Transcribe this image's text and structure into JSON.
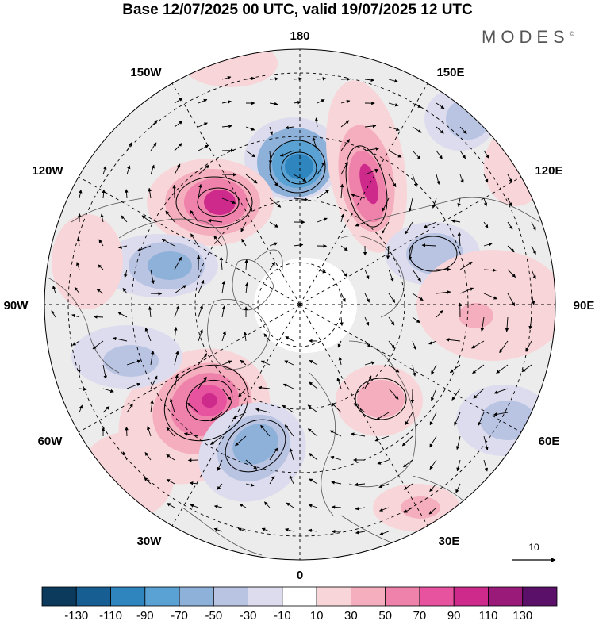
{
  "title": "Base 12/07/2025 00 UTC, valid 19/07/2025 12 UTC",
  "brand": {
    "name": "MODES",
    "mark": "©"
  },
  "longitude_labels": {
    "lon_180": "180",
    "lon_150e": "150E",
    "lon_120e": "120E",
    "lon_90e": "90E",
    "lon_60e": "60E",
    "lon_30e": "30E",
    "lon_0": "0",
    "lon_30w": "30W",
    "lon_60w": "60W",
    "lon_90w": "90W",
    "lon_120w": "120W",
    "lon_150w": "150W"
  },
  "vector_key": {
    "value": "10"
  },
  "colorbar": {
    "colors": [
      "#0b3a5c",
      "#175f93",
      "#2f86bf",
      "#5aa2d3",
      "#8eb1da",
      "#b9c3e2",
      "#dcdcee",
      "#ffffff",
      "#f8d5d8",
      "#f4aebd",
      "#ef82aa",
      "#e8539f",
      "#cd2a8c",
      "#991a78",
      "#5a0f69"
    ],
    "ticks": [
      "-130",
      "-110",
      "-90",
      "-70",
      "-50",
      "-30",
      "-10",
      "10",
      "30",
      "50",
      "70",
      "90",
      "110",
      "130"
    ]
  },
  "anomalies": [
    {
      "id": "neg-180",
      "color": "#5aa2d3",
      "core": "#2f86bf"
    },
    {
      "id": "pos-150e",
      "color": "#ef82aa",
      "core": "#cd2a8c"
    },
    {
      "id": "pos-130w",
      "color": "#ef82aa",
      "core": "#cd2a8c"
    },
    {
      "id": "neg-110w",
      "color": "#b9c3e2",
      "core": "#8eb1da"
    },
    {
      "id": "neg-130e",
      "color": "#b9c3e2",
      "core": "#8eb1da"
    },
    {
      "id": "pos-90e",
      "color": "#f8d5d8",
      "core": "#f4aebd"
    },
    {
      "id": "pos-45w",
      "color": "#ef82aa",
      "core": "#cd2a8c"
    },
    {
      "id": "neg-25w",
      "color": "#8eb1da",
      "core": "#5aa2d3"
    },
    {
      "id": "pos-40e",
      "color": "#f8d5d8",
      "core": "#f4aebd"
    },
    {
      "id": "neg-70e",
      "color": "#b9c3e2",
      "core": "#b9c3e2"
    },
    {
      "id": "pos-30e-low",
      "color": "#f8d5d8",
      "core": "#f4aebd"
    },
    {
      "id": "neg-70w",
      "color": "#b9c3e2",
      "core": "#b9c3e2"
    }
  ]
}
